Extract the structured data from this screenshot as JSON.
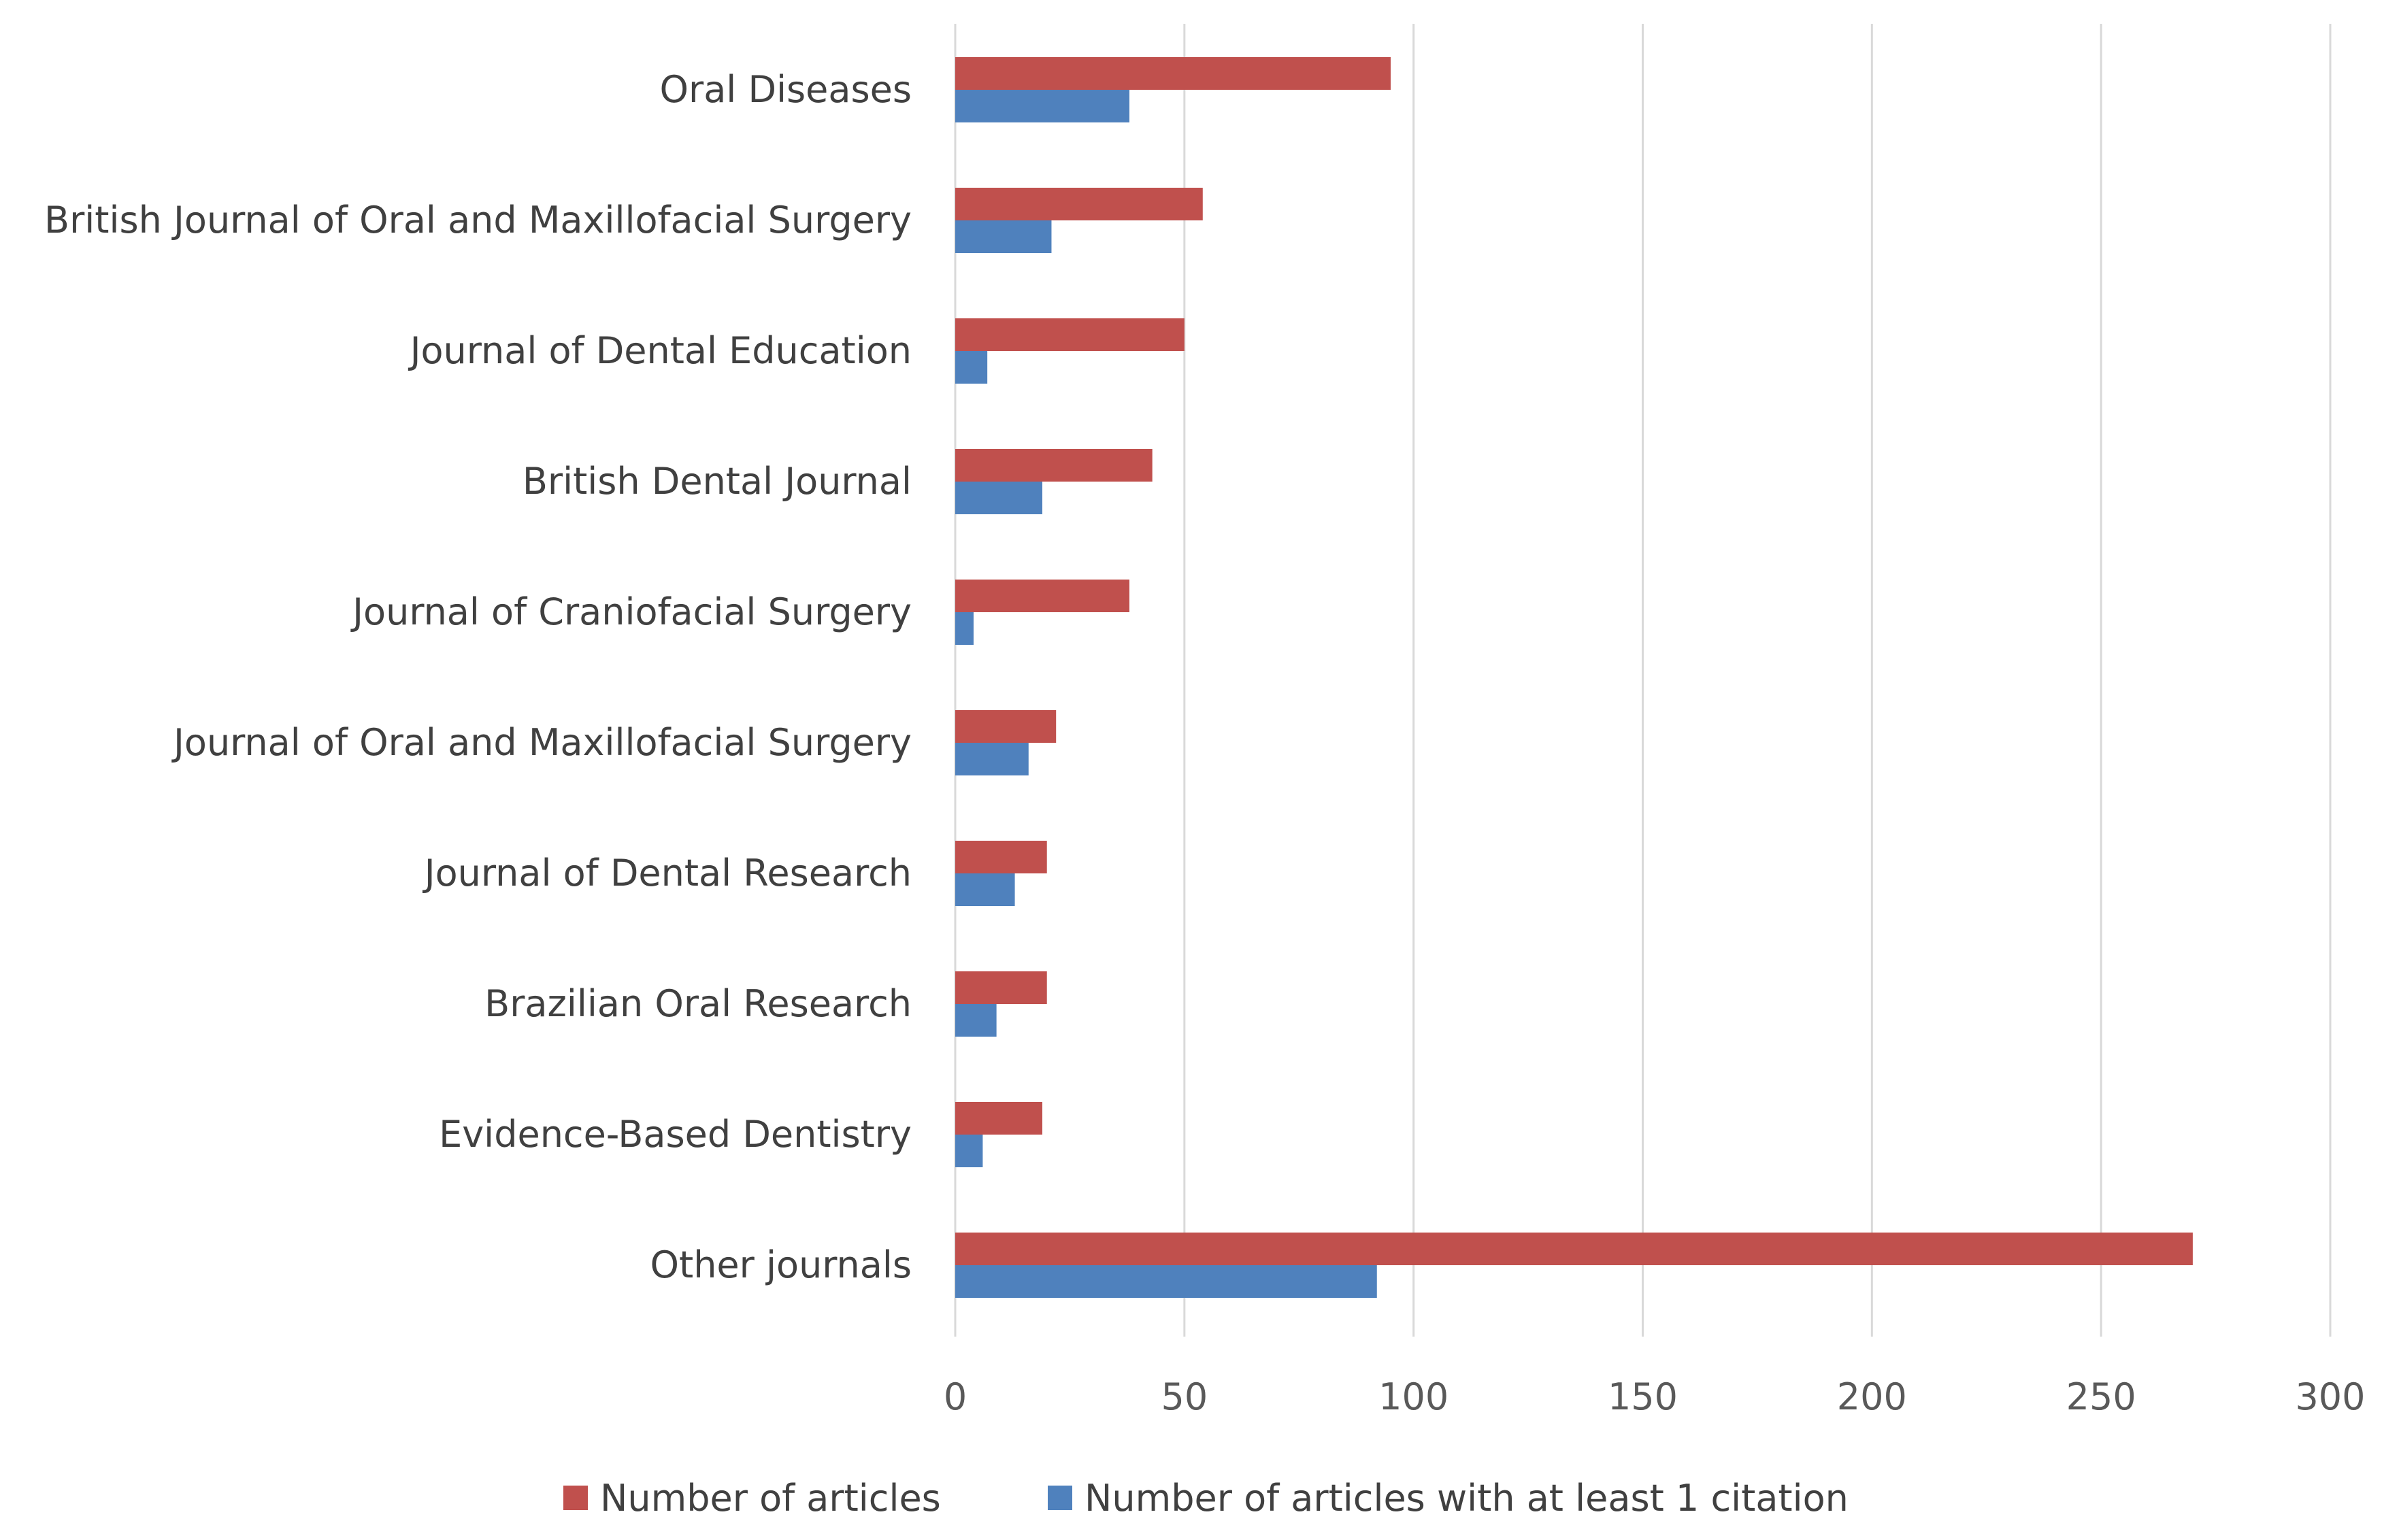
{
  "chart_data": {
    "type": "bar",
    "orientation": "horizontal",
    "title": "",
    "xlabel": "",
    "ylabel": "",
    "xlim": [
      0,
      300
    ],
    "x_ticks": [
      0,
      50,
      100,
      150,
      200,
      250,
      300
    ],
    "grid": true,
    "legend_position": "bottom",
    "categories": [
      "Oral Diseases",
      "British Journal of Oral and Maxillofacial Surgery",
      "Journal of Dental Education",
      "British Dental Journal",
      "Journal of Craniofacial Surgery",
      "Journal of Oral and Maxillofacial Surgery",
      "Journal of Dental Research",
      "Brazilian Oral Research",
      "Evidence-Based Dentistry",
      "Other journals"
    ],
    "series": [
      {
        "name": "Number of articles",
        "color": "#C0504D",
        "values": [
          95,
          54,
          50,
          43,
          38,
          22,
          20,
          20,
          19,
          270
        ]
      },
      {
        "name": "Number of articles with at least 1 citation",
        "color": "#4F81BD",
        "values": [
          38,
          21,
          7,
          19,
          4,
          16,
          13,
          9,
          6,
          92
        ]
      }
    ]
  }
}
